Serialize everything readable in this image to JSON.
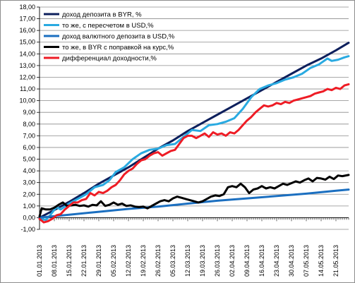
{
  "chart_data": {
    "type": "line",
    "title": "",
    "xlabel": "",
    "ylabel": "",
    "ylim": [
      -1,
      18
    ],
    "y_step": 1,
    "grid": "horizontal",
    "legend_position": "top-left (inside plot)",
    "x_tick_labels": [
      "01.01.2013",
      "08.01.2013",
      "15.01.2013",
      "22.01.2013",
      "29.01.2013",
      "05.02.2013",
      "12.02.2013",
      "19.02.2013",
      "26.02.2013",
      "05.03.2013",
      "12.03.2013",
      "19.03.2013",
      "26.03.2013",
      "02.04.2013",
      "09.04.2013",
      "16.04.2013",
      "23.04.2013",
      "30.04.2013",
      "07.05.2013",
      "14.05.2013",
      "21.05.2013"
    ],
    "x_days": [
      0,
      7,
      14,
      21,
      28,
      35,
      42,
      49,
      56,
      63,
      70,
      77,
      84,
      91,
      98,
      105,
      112,
      119,
      126,
      133,
      140
    ],
    "y_tick_labels": [
      "-1,00",
      "0,00",
      "1,00",
      "2,00",
      "3,00",
      "4,00",
      "5,00",
      "6,00",
      "7,00",
      "8,00",
      "9,00",
      "10,00",
      "11,00",
      "12,00",
      "13,00",
      "14,00",
      "15,00",
      "16,00",
      "17,00",
      "18,00"
    ],
    "series": [
      {
        "name": "доход депозита в BYR, %",
        "color": "#0d1f5c",
        "points": [
          [
            0,
            0.0
          ],
          [
            7,
            0.65
          ],
          [
            14,
            1.35
          ],
          [
            21,
            2.1
          ],
          [
            28,
            2.9
          ],
          [
            35,
            3.6
          ],
          [
            42,
            4.3
          ],
          [
            49,
            5.1
          ],
          [
            56,
            5.9
          ],
          [
            63,
            6.6
          ],
          [
            70,
            7.4
          ],
          [
            77,
            8.1
          ],
          [
            84,
            8.8
          ],
          [
            91,
            9.5
          ],
          [
            98,
            10.2
          ],
          [
            105,
            10.9
          ],
          [
            112,
            11.6
          ],
          [
            119,
            12.3
          ],
          [
            126,
            13.0
          ],
          [
            133,
            13.6
          ],
          [
            140,
            14.3
          ],
          [
            146,
            14.95
          ]
        ]
      },
      {
        "name": "то же, с пересчетом в USD,%",
        "color": "#29aae1",
        "points": [
          [
            0,
            -0.1
          ],
          [
            3,
            -0.2
          ],
          [
            5,
            0.2
          ],
          [
            8,
            0.9
          ],
          [
            10,
            0.7
          ],
          [
            14,
            1.2
          ],
          [
            18,
            1.6
          ],
          [
            22,
            2.0
          ],
          [
            26,
            2.6
          ],
          [
            30,
            2.8
          ],
          [
            33,
            3.2
          ],
          [
            36,
            3.9
          ],
          [
            40,
            4.3
          ],
          [
            44,
            5.0
          ],
          [
            48,
            5.5
          ],
          [
            52,
            5.8
          ],
          [
            56,
            5.9
          ],
          [
            60,
            6.2
          ],
          [
            64,
            6.3
          ],
          [
            68,
            6.9
          ],
          [
            72,
            7.5
          ],
          [
            76,
            7.4
          ],
          [
            80,
            7.9
          ],
          [
            84,
            8.0
          ],
          [
            88,
            8.2
          ],
          [
            92,
            8.5
          ],
          [
            96,
            9.3
          ],
          [
            100,
            10.3
          ],
          [
            104,
            11.0
          ],
          [
            108,
            11.3
          ],
          [
            112,
            11.5
          ],
          [
            116,
            11.8
          ],
          [
            120,
            12.0
          ],
          [
            124,
            12.3
          ],
          [
            128,
            12.8
          ],
          [
            132,
            13.1
          ],
          [
            136,
            13.6
          ],
          [
            138,
            13.4
          ],
          [
            141,
            13.5
          ],
          [
            144,
            13.7
          ],
          [
            146,
            13.8
          ]
        ]
      },
      {
        "name": "доход валютного депозита в USD,%",
        "color": "#1b6fc0",
        "points": [
          [
            0,
            0.0
          ],
          [
            14,
            0.25
          ],
          [
            28,
            0.5
          ],
          [
            42,
            0.75
          ],
          [
            56,
            0.95
          ],
          [
            70,
            1.2
          ],
          [
            84,
            1.45
          ],
          [
            98,
            1.65
          ],
          [
            112,
            1.85
          ],
          [
            126,
            2.05
          ],
          [
            140,
            2.3
          ],
          [
            146,
            2.4
          ]
        ]
      },
      {
        "name": "то же, в BYR с поправкой на курс,%",
        "color": "#000000",
        "points": [
          [
            0,
            0.1
          ],
          [
            1,
            0.8
          ],
          [
            3,
            0.7
          ],
          [
            5,
            0.7
          ],
          [
            7,
            0.85
          ],
          [
            9,
            1.1
          ],
          [
            11,
            1.3
          ],
          [
            13,
            1.0
          ],
          [
            15,
            1.05
          ],
          [
            17,
            1.1
          ],
          [
            19,
            1.0
          ],
          [
            21,
            1.05
          ],
          [
            23,
            0.95
          ],
          [
            25,
            1.1
          ],
          [
            27,
            1.05
          ],
          [
            29,
            1.4
          ],
          [
            31,
            1.0
          ],
          [
            33,
            1.1
          ],
          [
            35,
            1.3
          ],
          [
            37,
            1.1
          ],
          [
            39,
            1.2
          ],
          [
            41,
            1.0
          ],
          [
            43,
            1.05
          ],
          [
            45,
            0.95
          ],
          [
            47,
            0.9
          ],
          [
            49,
            0.95
          ],
          [
            51,
            0.8
          ],
          [
            53,
            1.0
          ],
          [
            55,
            1.2
          ],
          [
            57,
            1.4
          ],
          [
            59,
            1.5
          ],
          [
            61,
            1.4
          ],
          [
            63,
            1.65
          ],
          [
            65,
            1.8
          ],
          [
            67,
            1.7
          ],
          [
            69,
            1.6
          ],
          [
            71,
            1.5
          ],
          [
            73,
            1.4
          ],
          [
            75,
            1.3
          ],
          [
            77,
            1.4
          ],
          [
            79,
            1.6
          ],
          [
            81,
            1.8
          ],
          [
            83,
            1.9
          ],
          [
            85,
            1.85
          ],
          [
            87,
            2.0
          ],
          [
            89,
            2.6
          ],
          [
            91,
            2.7
          ],
          [
            93,
            2.6
          ],
          [
            95,
            2.9
          ],
          [
            97,
            2.6
          ],
          [
            99,
            2.1
          ],
          [
            101,
            2.4
          ],
          [
            103,
            2.5
          ],
          [
            105,
            2.7
          ],
          [
            107,
            2.5
          ],
          [
            109,
            2.6
          ],
          [
            111,
            2.5
          ],
          [
            113,
            2.7
          ],
          [
            115,
            2.9
          ],
          [
            117,
            2.8
          ],
          [
            119,
            2.95
          ],
          [
            121,
            3.1
          ],
          [
            123,
            3.0
          ],
          [
            125,
            3.2
          ],
          [
            127,
            3.35
          ],
          [
            129,
            3.1
          ],
          [
            131,
            3.4
          ],
          [
            133,
            3.35
          ],
          [
            135,
            3.25
          ],
          [
            137,
            3.5
          ],
          [
            139,
            3.3
          ],
          [
            141,
            3.6
          ],
          [
            143,
            3.55
          ],
          [
            146,
            3.65
          ]
        ]
      },
      {
        "name": "дифференциал доходности,%",
        "color": "#ee1c25",
        "points": [
          [
            0,
            -0.1
          ],
          [
            2,
            -0.4
          ],
          [
            4,
            -0.3
          ],
          [
            6,
            -0.1
          ],
          [
            8,
            0.2
          ],
          [
            10,
            0.3
          ],
          [
            12,
            0.7
          ],
          [
            14,
            1.0
          ],
          [
            16,
            1.3
          ],
          [
            18,
            1.3
          ],
          [
            20,
            1.5
          ],
          [
            22,
            1.6
          ],
          [
            24,
            2.1
          ],
          [
            26,
            1.9
          ],
          [
            28,
            2.2
          ],
          [
            30,
            2.1
          ],
          [
            32,
            2.3
          ],
          [
            34,
            2.6
          ],
          [
            36,
            2.8
          ],
          [
            38,
            3.2
          ],
          [
            40,
            3.7
          ],
          [
            42,
            4.0
          ],
          [
            44,
            4.2
          ],
          [
            46,
            4.6
          ],
          [
            48,
            4.9
          ],
          [
            50,
            5.0
          ],
          [
            52,
            5.3
          ],
          [
            54,
            5.5
          ],
          [
            56,
            5.6
          ],
          [
            58,
            5.3
          ],
          [
            60,
            5.5
          ],
          [
            62,
            5.7
          ],
          [
            64,
            5.8
          ],
          [
            66,
            6.3
          ],
          [
            68,
            6.8
          ],
          [
            70,
            7.0
          ],
          [
            72,
            7.0
          ],
          [
            74,
            6.8
          ],
          [
            76,
            7.0
          ],
          [
            78,
            7.2
          ],
          [
            80,
            6.9
          ],
          [
            82,
            7.3
          ],
          [
            84,
            7.1
          ],
          [
            86,
            7.2
          ],
          [
            88,
            7.0
          ],
          [
            90,
            7.3
          ],
          [
            92,
            7.2
          ],
          [
            94,
            7.5
          ],
          [
            96,
            7.9
          ],
          [
            98,
            8.3
          ],
          [
            100,
            8.6
          ],
          [
            102,
            9.0
          ],
          [
            104,
            9.3
          ],
          [
            106,
            9.6
          ],
          [
            108,
            9.5
          ],
          [
            110,
            9.6
          ],
          [
            112,
            9.8
          ],
          [
            114,
            9.7
          ],
          [
            116,
            9.9
          ],
          [
            118,
            9.8
          ],
          [
            120,
            10.0
          ],
          [
            122,
            10.1
          ],
          [
            124,
            10.2
          ],
          [
            126,
            10.3
          ],
          [
            128,
            10.4
          ],
          [
            130,
            10.6
          ],
          [
            132,
            10.7
          ],
          [
            134,
            10.8
          ],
          [
            136,
            11.0
          ],
          [
            138,
            10.9
          ],
          [
            140,
            11.1
          ],
          [
            142,
            11.0
          ],
          [
            144,
            11.3
          ],
          [
            146,
            11.4
          ]
        ]
      }
    ]
  }
}
